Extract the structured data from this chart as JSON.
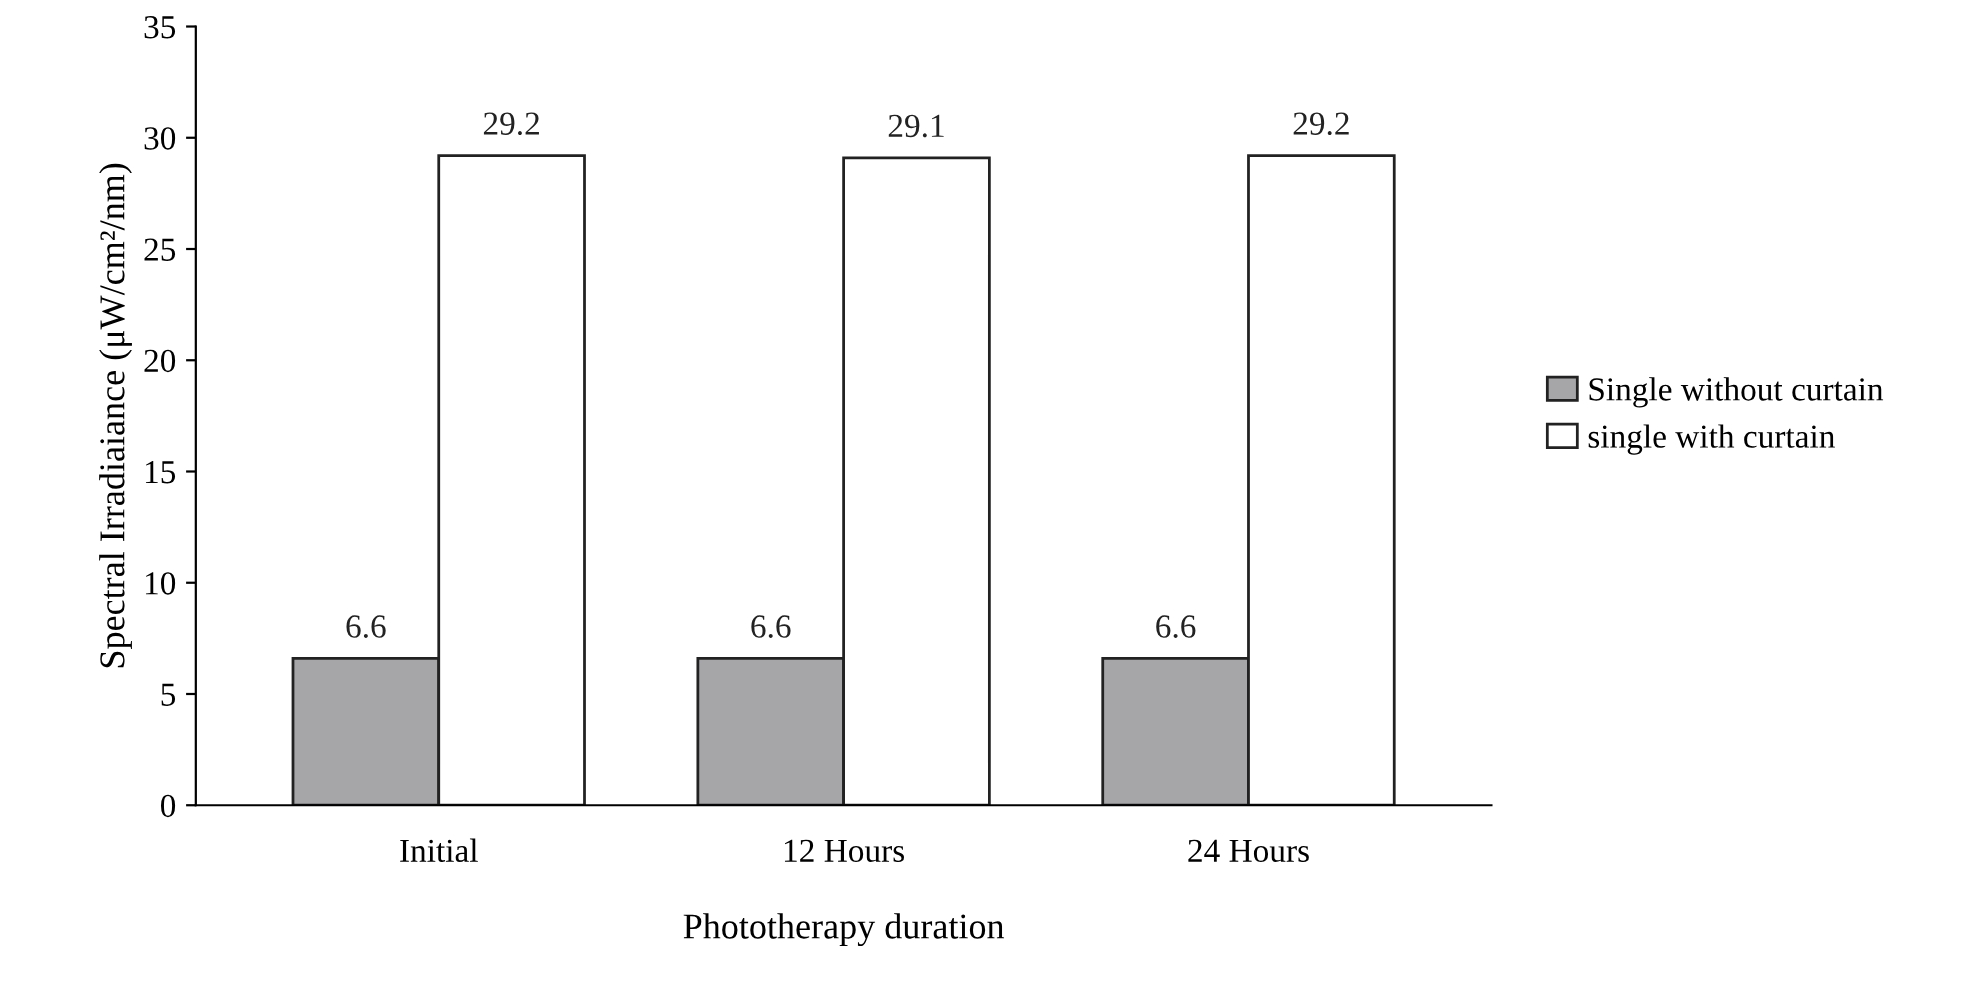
{
  "chart_data": {
    "type": "bar",
    "xlabel": "Phototherapy duration",
    "ylabel": "Spectral Irradiaiance (μW/cm²/nm)",
    "categories": [
      "Initial",
      "12 Hours",
      "24 Hours"
    ],
    "series": [
      {
        "name": "Single without curtain",
        "color": "#a6a6a8",
        "values": [
          6.6,
          6.6,
          6.6
        ]
      },
      {
        "name": "single with curtain",
        "color": "#ffffff",
        "values": [
          29.2,
          29.1,
          29.2
        ]
      }
    ],
    "ylim": [
      0,
      35
    ],
    "yticks": [
      0,
      5,
      10,
      15,
      20,
      25,
      30,
      35
    ],
    "data_labels": true,
    "grid": false,
    "legend": "right"
  }
}
